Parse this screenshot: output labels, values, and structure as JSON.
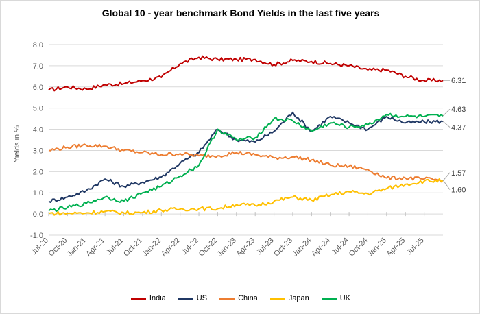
{
  "chart_data": {
    "type": "line",
    "title": "Global 10 - year benchmark Bond Yields in the last five years",
    "ylabel": "Yields in %",
    "xlabel": "",
    "ylim": [
      -1.0,
      8.0
    ],
    "yticks": [
      "8.0",
      "7.0",
      "6.0",
      "5.0",
      "4.0",
      "3.0",
      "2.0",
      "1.0",
      "0.0",
      "-1.0"
    ],
    "x_tick_labels": [
      "Jul-20",
      "Oct-20",
      "Jan-21",
      "Apr-21",
      "Jul-21",
      "Oct-21",
      "Jan-22",
      "Apr-22",
      "Jul-22",
      "Oct-22",
      "Jan-23",
      "Apr-23",
      "Jul-23",
      "Oct-23",
      "Jan-24",
      "Apr-24",
      "Jul-24",
      "Oct-24",
      "Jan-25",
      "Apr-25",
      "Jul-25"
    ],
    "x": [
      "Jul-20",
      "Oct-20",
      "Jan-21",
      "Apr-21",
      "Jul-21",
      "Oct-21",
      "Jan-22",
      "Apr-22",
      "Jul-22",
      "Oct-22",
      "Jan-23",
      "Apr-23",
      "Jul-23",
      "Oct-23",
      "Jan-24",
      "Apr-24",
      "Jul-24",
      "Oct-24",
      "Jan-25",
      "Apr-25",
      "Jul-25",
      "Aug-25"
    ],
    "series": [
      {
        "name": "India",
        "color": "#c00000",
        "values": [
          5.85,
          6.0,
          5.9,
          6.1,
          6.15,
          6.3,
          6.45,
          7.1,
          7.4,
          7.3,
          7.3,
          7.3,
          7.05,
          7.25,
          7.2,
          7.1,
          7.0,
          6.8,
          6.8,
          6.5,
          6.3,
          6.31
        ]
      },
      {
        "name": "US",
        "color": "#203864",
        "values": [
          0.6,
          0.8,
          1.1,
          1.65,
          1.3,
          1.5,
          1.75,
          2.4,
          2.9,
          4.0,
          3.5,
          3.4,
          3.9,
          4.8,
          3.9,
          4.6,
          4.3,
          4.0,
          4.6,
          4.3,
          4.35,
          4.37
        ]
      },
      {
        "name": "China",
        "color": "#ed7d31",
        "values": [
          3.0,
          3.15,
          3.25,
          3.2,
          3.0,
          2.9,
          2.8,
          2.85,
          2.75,
          2.75,
          2.9,
          2.8,
          2.65,
          2.7,
          2.55,
          2.3,
          2.25,
          2.1,
          1.7,
          1.7,
          1.65,
          1.6
        ]
      },
      {
        "name": "Japan",
        "color": "#ffc000",
        "values": [
          0.03,
          0.03,
          0.05,
          0.12,
          0.05,
          0.07,
          0.18,
          0.23,
          0.25,
          0.25,
          0.45,
          0.4,
          0.6,
          0.8,
          0.65,
          0.9,
          1.05,
          0.95,
          1.2,
          1.4,
          1.55,
          1.57
        ]
      },
      {
        "name": "UK",
        "color": "#00b050",
        "values": [
          0.15,
          0.3,
          0.5,
          0.8,
          0.6,
          1.0,
          1.3,
          1.8,
          2.3,
          4.0,
          3.5,
          3.6,
          4.5,
          4.4,
          3.9,
          4.3,
          4.1,
          4.2,
          4.7,
          4.6,
          4.6,
          4.63
        ]
      }
    ],
    "end_labels": [
      {
        "text": "6.31",
        "value": 6.31,
        "series": "India"
      },
      {
        "text": "4.63",
        "value": 4.63,
        "series": "UK"
      },
      {
        "text": "4.37",
        "value": 4.37,
        "series": "US"
      },
      {
        "text": "1.57",
        "value": 1.57,
        "series": "Japan"
      },
      {
        "text": "1.60",
        "value": 1.6,
        "series": "China"
      }
    ],
    "grid": "horizontal",
    "legend_position": "bottom"
  }
}
